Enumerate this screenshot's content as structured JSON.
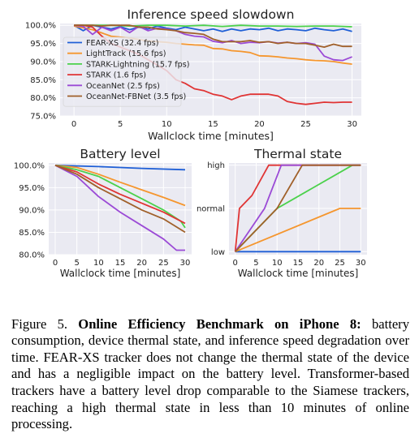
{
  "colors": {
    "fear": "#1f5fd6",
    "lighttrack": "#f5962e",
    "stark_lightning": "#4bd14b",
    "stark": "#e03434",
    "oceannet": "#9b4ad6",
    "oceannet_fbnet": "#a0602a",
    "background": "#eaeaf2",
    "grid": "#ffffff"
  },
  "chart_data": [
    {
      "type": "line",
      "title": "Inference speed slowdown",
      "xlabel": "Wallclock time [minutes]",
      "ylabel": "",
      "xlim": [
        -1.5,
        31
      ],
      "ylim": [
        75,
        100.5
      ],
      "xticks": [
        0,
        5,
        10,
        15,
        20,
        25,
        30
      ],
      "yticks": [
        75,
        80,
        85,
        90,
        95,
        100
      ],
      "ytick_labels": [
        "75.0%",
        "80.0%",
        "85.0%",
        "90.0%",
        "95.0%",
        "100.0%"
      ],
      "grid": true,
      "legend": "left",
      "series": [
        {
          "name": "FEAR-XS (32.4 fps)",
          "color_key": "fear",
          "x": [
            0,
            1,
            2,
            3,
            4,
            5,
            6,
            7,
            8,
            9,
            10,
            11,
            12,
            13,
            14,
            15,
            16,
            17,
            18,
            19,
            20,
            21,
            22,
            23,
            24,
            25,
            26,
            27,
            28,
            29,
            30
          ],
          "y": [
            100,
            98.5,
            100,
            99.5,
            99,
            99.6,
            98.8,
            99.5,
            99,
            99.8,
            99.2,
            98.8,
            99.5,
            99,
            98.5,
            99,
            98.3,
            99,
            98.5,
            99,
            98.8,
            99.2,
            98.5,
            99,
            98.8,
            98.5,
            99.2,
            98.8,
            98.5,
            99,
            98.3
          ]
        },
        {
          "name": "LightTrack (15.6 fps)",
          "color_key": "lighttrack",
          "x": [
            0,
            2,
            4,
            6,
            8,
            10,
            11,
            12,
            13,
            14,
            15,
            16,
            17,
            18,
            19,
            20,
            21,
            22,
            23,
            24,
            25,
            26,
            27,
            28,
            29,
            30
          ],
          "y": [
            99.8,
            98.8,
            97,
            96.5,
            95.7,
            95.3,
            95,
            94.8,
            94.6,
            94.5,
            93.6,
            93.5,
            93,
            92.8,
            92.5,
            91.6,
            91.5,
            91.3,
            91,
            90.8,
            90.5,
            90.3,
            90.2,
            90,
            89.6,
            89.3
          ]
        },
        {
          "name": "STARK-Lightning (15.7 fps)",
          "color_key": "stark_lightning",
          "x": [
            0,
            2,
            4,
            6,
            8,
            10,
            12,
            14,
            16,
            18,
            20,
            22,
            24,
            26,
            28,
            30
          ],
          "y": [
            100,
            100,
            100,
            99.8,
            100,
            100,
            99.8,
            100,
            99.7,
            100,
            99.8,
            99.8,
            99.7,
            99.8,
            99.8,
            99.6
          ]
        },
        {
          "name": "STARK (1.6 fps)",
          "color_key": "stark",
          "x": [
            0,
            1,
            2,
            3,
            4,
            5,
            6,
            7,
            8,
            9,
            10,
            11,
            12,
            13,
            14,
            15,
            16,
            17,
            18,
            19,
            20,
            21,
            22,
            23,
            24,
            25,
            26,
            27,
            28,
            29,
            30
          ],
          "y": [
            100,
            100,
            99.5,
            97,
            95,
            94,
            93,
            92,
            90.5,
            89,
            87.5,
            85,
            84,
            82.5,
            82,
            81,
            80.5,
            79.5,
            80.5,
            81,
            81,
            81,
            80.5,
            79,
            78.5,
            78.2,
            78.5,
            78.8,
            78.7,
            78.8,
            78.8
          ]
        },
        {
          "name": "OceanNet (2.5 fps)",
          "color_key": "oceannet",
          "x": [
            0,
            1,
            2,
            3,
            4,
            5,
            6,
            7,
            8,
            9,
            10,
            11,
            12,
            13,
            14,
            15,
            16,
            17,
            18,
            19,
            20,
            21,
            22,
            23,
            24,
            25,
            26,
            27,
            28,
            29,
            30
          ],
          "y": [
            100,
            99.7,
            97.5,
            99.5,
            98.5,
            99.5,
            98,
            99.7,
            98.5,
            99.2,
            99,
            98.5,
            97.5,
            97,
            96.8,
            95.6,
            95.2,
            95.8,
            95,
            95.3,
            95.2,
            95.5,
            95.1,
            95.3,
            95,
            95.2,
            94.8,
            91.5,
            90.5,
            90.3,
            91.3
          ]
        },
        {
          "name": "OceanNet-FBNet (3.5 fps)",
          "color_key": "oceannet_fbnet",
          "x": [
            0,
            1,
            2,
            3,
            4,
            5,
            6,
            7,
            8,
            9,
            10,
            11,
            12,
            13,
            14,
            15,
            16,
            17,
            18,
            19,
            20,
            21,
            22,
            23,
            24,
            25,
            26,
            27,
            28,
            29,
            30
          ],
          "y": [
            100,
            100,
            100,
            99.8,
            100,
            100,
            100,
            99.5,
            99.5,
            99,
            98.8,
            98.5,
            98,
            97.8,
            97.5,
            96.2,
            95.5,
            95.5,
            95.5,
            95.8,
            95.3,
            95.5,
            95,
            95.3,
            95,
            95,
            94.5,
            94,
            94.8,
            94.2,
            94.2
          ]
        }
      ]
    },
    {
      "type": "line",
      "title": "Battery level",
      "xlabel": "Wallclock time [minutes]",
      "ylabel": "",
      "xlim": [
        -1.5,
        31.5
      ],
      "ylim": [
        80,
        100.5
      ],
      "xticks": [
        0,
        5,
        10,
        15,
        20,
        25,
        30
      ],
      "yticks": [
        80,
        85,
        90,
        95,
        100
      ],
      "ytick_labels": [
        "80.0%",
        "85.0%",
        "90.0%",
        "95.0%",
        "100.0%"
      ],
      "grid": true,
      "series": [
        {
          "color_key": "fear",
          "x": [
            0,
            10,
            20,
            30
          ],
          "y": [
            100,
            99.7,
            99.3,
            99
          ]
        },
        {
          "color_key": "lighttrack",
          "x": [
            0,
            5,
            10,
            15,
            20,
            25,
            30
          ],
          "y": [
            100,
            99.5,
            98,
            96.2,
            94.5,
            92.8,
            91
          ]
        },
        {
          "color_key": "stark_lightning",
          "x": [
            0,
            5,
            10,
            15,
            20,
            25,
            29,
            30
          ],
          "y": [
            100,
            99,
            97.5,
            95,
            92.5,
            90,
            87.5,
            86
          ]
        },
        {
          "color_key": "stark",
          "x": [
            0,
            5,
            10,
            15,
            20,
            25,
            29,
            30
          ],
          "y": [
            100,
            98.5,
            95.8,
            93.5,
            91.5,
            89.5,
            87.5,
            87
          ]
        },
        {
          "color_key": "oceannet",
          "x": [
            0,
            5,
            10,
            15,
            20,
            25,
            28,
            30
          ],
          "y": [
            100,
            97.5,
            93,
            89.5,
            86.5,
            83.5,
            81,
            81
          ]
        },
        {
          "color_key": "oceannet_fbnet",
          "x": [
            0,
            5,
            10,
            15,
            20,
            25,
            30
          ],
          "y": [
            100,
            98,
            95,
            92.5,
            90,
            88,
            85
          ]
        }
      ]
    },
    {
      "type": "line",
      "title": "Thermal state",
      "xlabel": "Wallclock time [minutes]",
      "ylabel": "",
      "xlim": [
        -1.5,
        31.5
      ],
      "ylim": [
        -0.07,
        2.05
      ],
      "xticks": [
        0,
        5,
        10,
        15,
        20,
        25,
        30
      ],
      "yticks": [
        0,
        1,
        2
      ],
      "ytick_labels": [
        "low",
        "normal",
        "high"
      ],
      "grid": true,
      "series": [
        {
          "color_key": "fear",
          "x": [
            0,
            30
          ],
          "y": [
            0,
            0
          ]
        },
        {
          "color_key": "lighttrack",
          "x": [
            0,
            25,
            30
          ],
          "y": [
            0,
            1,
            1
          ]
        },
        {
          "color_key": "stark_lightning",
          "x": [
            0,
            10,
            28,
            30
          ],
          "y": [
            0,
            1,
            2,
            2
          ]
        },
        {
          "color_key": "stark",
          "x": [
            0,
            1,
            4,
            8,
            30
          ],
          "y": [
            0,
            1,
            1.3,
            2,
            2
          ]
        },
        {
          "color_key": "oceannet",
          "x": [
            0,
            7,
            11,
            30
          ],
          "y": [
            0,
            1,
            2,
            2
          ]
        },
        {
          "color_key": "oceannet_fbnet",
          "x": [
            0,
            10,
            16,
            30
          ],
          "y": [
            0,
            1,
            2,
            2
          ]
        }
      ]
    }
  ],
  "caption": {
    "label": "Figure 5.",
    "bold": "Online Efficiency Benchmark on iPhone 8:",
    "text": "battery consumption, device thermal state, and inference speed degradation over time. FEAR-XS tracker does not change the thermal state of the device and has a negligible impact on the battery level. Transformer-based trackers have a battery level drop comparable to the Siamese trackers, reaching a high thermal state in less than 10 minutes of online processing."
  }
}
